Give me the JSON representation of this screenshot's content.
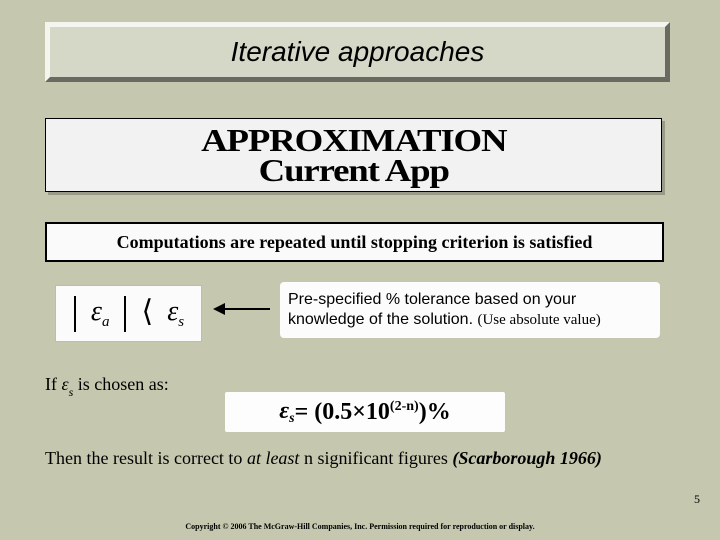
{
  "title": "Iterative approaches",
  "equation_top_line1": "APPROXIMATION",
  "equation_top_line2": "Current App",
  "stopping_criterion": "Computations are repeated until stopping criterion is satisfied",
  "epsilon_a_sub": "a",
  "epsilon_s_sub": "s",
  "tolerance_line1": "Pre-specified % tolerance based on your",
  "tolerance_line2a": "knowledge of the solution.",
  "tolerance_line2b": "(Use absolute value)",
  "if_prefix": "If ",
  "if_suffix": " is chosen as:",
  "formula_exponent": "(2-n)",
  "formula_lhs": "ε",
  "formula_eq": " = (0.5×10",
  "formula_tail": ")%",
  "then_a": "Then the result is correct to ",
  "then_b": "at least",
  "then_c": " n significant figures ",
  "then_d": "(Scarborough 1966)",
  "page_number": "5",
  "copyright_text": "Copyright © 2006 The McGraw-Hill Companies, Inc. Permission required for reproduction or display.",
  "colors": {
    "background": "#c5c8ae",
    "panel": "#d5d7c7",
    "bevel_light": "#f5f5f0",
    "bevel_dark": "#6a6a60"
  }
}
